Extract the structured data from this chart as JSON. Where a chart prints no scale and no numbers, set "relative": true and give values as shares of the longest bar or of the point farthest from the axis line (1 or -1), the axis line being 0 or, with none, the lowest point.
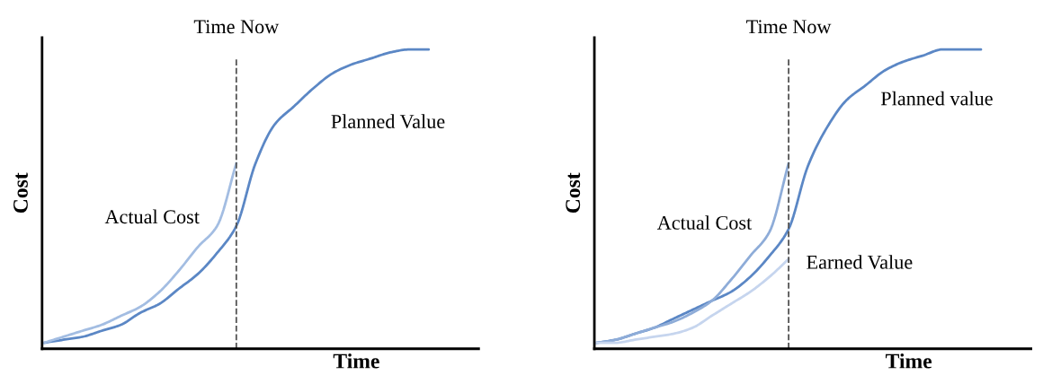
{
  "chart_data": [
    {
      "type": "line",
      "relative": true,
      "xlabel": "Time",
      "ylabel": "Cost",
      "tick_labels": false,
      "legend": false,
      "line_style": "solid",
      "marker": "none",
      "annotations": [
        "Time Now"
      ],
      "categories": [
        null,
        null,
        null,
        null,
        null,
        null,
        null,
        null,
        null,
        null,
        null,
        null,
        null,
        null,
        null,
        null,
        null,
        null,
        null,
        null,
        null
      ],
      "series": [
        {
          "name": "Planned Value",
          "color": "#5b87c5",
          "values": [
            0.02,
            0.03,
            0.04,
            0.06,
            0.08,
            0.12,
            0.15,
            0.2,
            0.25,
            0.32,
            0.41,
            0.62,
            0.75,
            0.81,
            0.87,
            0.92,
            0.95,
            0.97,
            0.99,
            1.0,
            1.0
          ]
        },
        {
          "name": "Actual Cost",
          "color": "#a3bde2",
          "values": [
            0.02,
            0.04,
            0.06,
            0.08,
            0.11,
            0.14,
            0.19,
            0.26,
            0.34,
            0.41,
            0.62,
            null,
            null,
            null,
            null,
            null,
            null,
            null,
            null,
            null,
            null
          ]
        }
      ]
    },
    {
      "type": "line",
      "relative": true,
      "xlabel": "Time",
      "ylabel": "Cost",
      "tick_labels": false,
      "legend": false,
      "line_style": "solid",
      "marker": "none",
      "annotations": [
        "Time Now"
      ],
      "categories": [
        null,
        null,
        null,
        null,
        null,
        null,
        null,
        null,
        null,
        null,
        null,
        null,
        null,
        null,
        null,
        null,
        null,
        null,
        null,
        null,
        null
      ],
      "series": [
        {
          "name": "Planned value",
          "color": "#5b87c5",
          "values": [
            0.02,
            0.03,
            0.05,
            0.07,
            0.1,
            0.13,
            0.16,
            0.19,
            0.24,
            0.31,
            0.4,
            0.61,
            0.74,
            0.83,
            0.88,
            0.93,
            0.96,
            0.98,
            1.0,
            1.0,
            1.0
          ]
        },
        {
          "name": "Actual Cost",
          "color": "#8eacd8",
          "values": [
            0.02,
            0.03,
            0.05,
            0.07,
            0.09,
            0.12,
            0.16,
            0.23,
            0.31,
            0.39,
            0.62,
            null,
            null,
            null,
            null,
            null,
            null,
            null,
            null,
            null,
            null
          ]
        },
        {
          "name": "Earned Value",
          "color": "#c6d5ee",
          "values": [
            0.02,
            0.02,
            0.03,
            0.04,
            0.05,
            0.07,
            0.11,
            0.15,
            0.19,
            0.24,
            0.3,
            null,
            null,
            null,
            null,
            null,
            null,
            null,
            null,
            null,
            null
          ]
        }
      ]
    }
  ]
}
